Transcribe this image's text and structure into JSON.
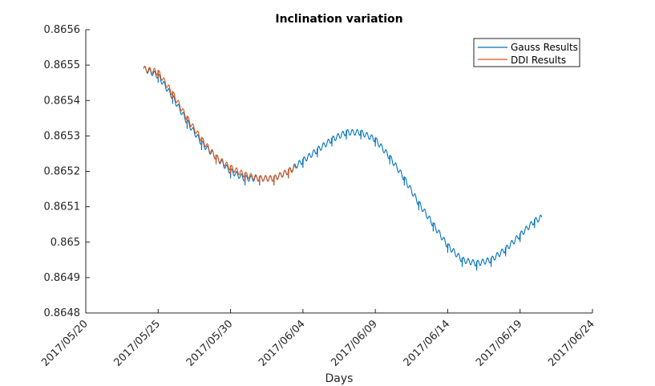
{
  "chart_data": {
    "type": "line",
    "title": "Inclination variation",
    "xlabel": "Days",
    "ylabel": "",
    "x_axis": {
      "kind": "date",
      "range": [
        "2017/05/20",
        "2017/06/24"
      ],
      "ticks": [
        "2017/05/20",
        "2017/05/25",
        "2017/05/30",
        "2017/06/04",
        "2017/06/09",
        "2017/06/14",
        "2017/06/19",
        "2017/06/24"
      ]
    },
    "y_axis": {
      "range": [
        0.8648,
        0.8656
      ],
      "ticks": [
        "0.8648",
        "0.8649",
        "0.865",
        "0.8651",
        "0.8652",
        "0.8653",
        "0.8654",
        "0.8655",
        "0.8656"
      ]
    },
    "grid": false,
    "legend": {
      "placement": "top-right"
    },
    "series": [
      {
        "name": "Gauss Results",
        "color": "#0072BD",
        "start": "2017/05/24 00:00",
        "end": "2017/06/20 12:00",
        "trend": [
          [
            "2017/05/24",
            0.86549
          ],
          [
            "2017/05/25",
            0.86547
          ],
          [
            "2017/05/26",
            0.86541
          ],
          [
            "2017/05/27",
            0.86534
          ],
          [
            "2017/05/28",
            0.86528
          ],
          [
            "2017/05/29",
            0.86524
          ],
          [
            "2017/05/30",
            0.8652
          ],
          [
            "2017/05/31",
            0.86518
          ],
          [
            "2017/06/01",
            0.86518
          ],
          [
            "2017/06/02",
            0.86518
          ],
          [
            "2017/06/03",
            0.8652
          ],
          [
            "2017/06/04",
            0.86523
          ],
          [
            "2017/06/05",
            0.86526
          ],
          [
            "2017/06/06",
            0.86529
          ],
          [
            "2017/06/07",
            0.86531
          ],
          [
            "2017/06/08",
            0.86531
          ],
          [
            "2017/06/09",
            0.86529
          ],
          [
            "2017/06/10",
            0.86524
          ],
          [
            "2017/06/11",
            0.86518
          ],
          [
            "2017/06/12",
            0.86511
          ],
          [
            "2017/06/13",
            0.86505
          ],
          [
            "2017/06/14",
            0.86499
          ],
          [
            "2017/06/15",
            0.86495
          ],
          [
            "2017/06/16",
            0.86494
          ],
          [
            "2017/06/17",
            0.86495
          ],
          [
            "2017/06/18",
            0.86498
          ],
          [
            "2017/06/19",
            0.86502
          ],
          [
            "2017/06/20",
            0.86506
          ],
          [
            "2017/06/20 12:00",
            0.86507
          ]
        ],
        "oscillation_amplitude": 8e-06,
        "oscillations_per_day": 3,
        "spike_depth": 2e-05
      },
      {
        "name": "DDI Results",
        "color": "#D95319",
        "start": "2017/05/24 00:00",
        "end": "2017/06/03 12:00",
        "trend": [
          [
            "2017/05/24",
            0.86549
          ],
          [
            "2017/05/25",
            0.86548
          ],
          [
            "2017/05/26",
            0.86542
          ],
          [
            "2017/05/27",
            0.86535
          ],
          [
            "2017/05/28",
            0.86529
          ],
          [
            "2017/05/29",
            0.86524
          ],
          [
            "2017/05/30",
            0.86521
          ],
          [
            "2017/05/31",
            0.86519
          ],
          [
            "2017/06/01",
            0.86518
          ],
          [
            "2017/06/02",
            0.86518
          ],
          [
            "2017/06/03",
            0.8652
          ],
          [
            "2017/06/03 12:00",
            0.86521
          ]
        ],
        "oscillation_amplitude": 8e-06,
        "oscillations_per_day": 3,
        "spike_depth": 2e-05
      }
    ]
  }
}
